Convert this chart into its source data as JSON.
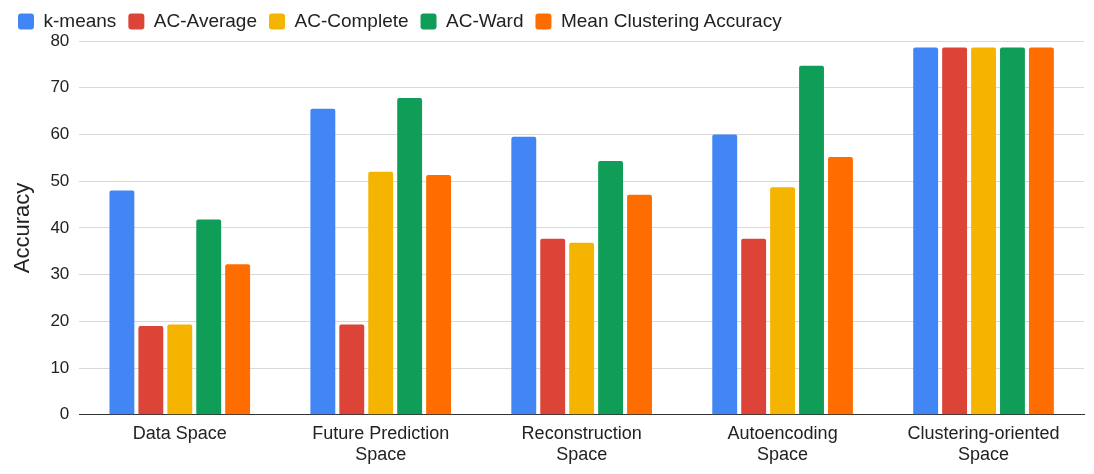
{
  "chart_data": {
    "type": "bar",
    "ylabel": "Accuracy",
    "categories": [
      "Data Space",
      "Future Prediction Space",
      "Reconstruction Space",
      "Autoencoding Space",
      "Clustering-oriented Space"
    ],
    "series": [
      {
        "name": "k-means",
        "color": "#4285f4",
        "values": [
          48,
          65.5,
          59.5,
          60,
          78.6
        ]
      },
      {
        "name": "AC-Average",
        "color": "#db4437",
        "values": [
          19,
          19.3,
          37.7,
          37.7,
          78.6
        ]
      },
      {
        "name": "AC-Complete",
        "color": "#f4b400",
        "values": [
          19.3,
          52,
          36.8,
          48.7,
          78.6
        ]
      },
      {
        "name": "AC-Ward",
        "color": "#0f9d58",
        "values": [
          41.8,
          67.8,
          54.3,
          74.7,
          78.6
        ]
      },
      {
        "name": "Mean Clustering Accuracy",
        "color": "#ff6d01",
        "values": [
          32.2,
          51.3,
          47.1,
          55.2,
          78.6
        ]
      }
    ],
    "ylim": [
      0,
      80
    ],
    "yticks": [
      0,
      10,
      20,
      30,
      40,
      50,
      60,
      70,
      80
    ],
    "grid": "y",
    "legend": "top left"
  }
}
